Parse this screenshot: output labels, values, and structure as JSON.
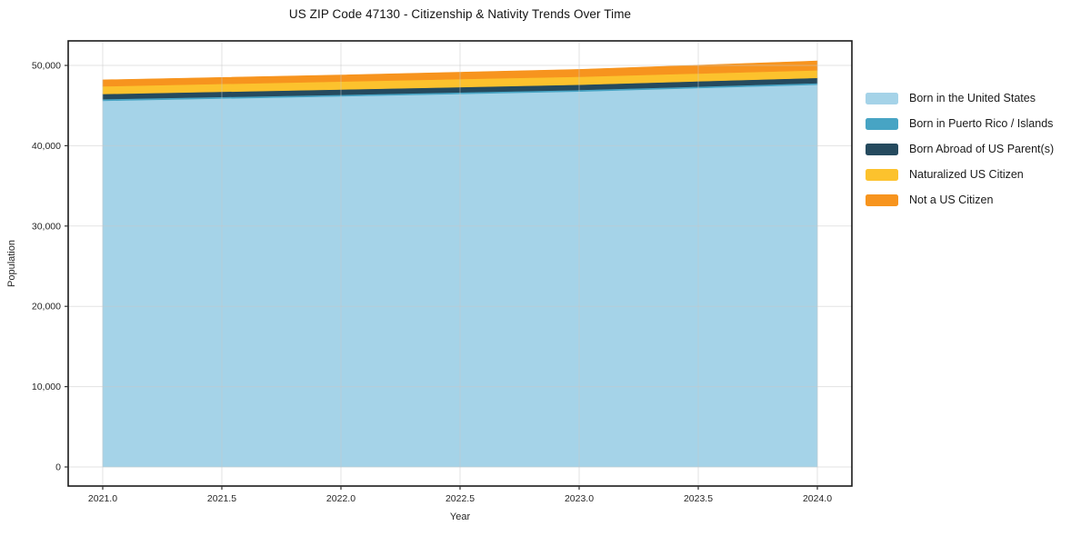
{
  "chart_data": {
    "type": "area",
    "stacked": true,
    "title": "US ZIP Code 47130 - Citizenship & Nativity Trends Over Time",
    "xlabel": "Year",
    "ylabel": "Population",
    "x": [
      2021,
      2022,
      2023,
      2024
    ],
    "series": [
      {
        "name": "Born in the United States",
        "color": "#A5D3E8",
        "values": [
          45600,
          46150,
          46750,
          47600
        ]
      },
      {
        "name": "Born in Puerto Rico / Islands",
        "color": "#47A4C4",
        "values": [
          200,
          200,
          200,
          200
        ]
      },
      {
        "name": "Born Abroad of US Parent(s)",
        "color": "#254A5E",
        "values": [
          650,
          650,
          650,
          650
        ]
      },
      {
        "name": "Naturalized US Citizen",
        "color": "#FCC22D",
        "values": [
          950,
          1000,
          1000,
          950
        ]
      },
      {
        "name": "Not a US Citizen",
        "color": "#F7941E",
        "values": [
          800,
          800,
          900,
          1150
        ]
      }
    ],
    "x_range": [
      2020.855,
      2024.145
    ],
    "y_range": [
      -2375,
      53055
    ],
    "xticks": [
      {
        "v": 2021.0,
        "label": "2021.0"
      },
      {
        "v": 2021.5,
        "label": "2021.5"
      },
      {
        "v": 2022.0,
        "label": "2022.0"
      },
      {
        "v": 2022.5,
        "label": "2022.5"
      },
      {
        "v": 2023.0,
        "label": "2023.0"
      },
      {
        "v": 2023.5,
        "label": "2023.5"
      },
      {
        "v": 2024.0,
        "label": "2024.0"
      }
    ],
    "yticks": [
      {
        "v": 0,
        "label": "0"
      },
      {
        "v": 10000,
        "label": "10,000"
      },
      {
        "v": 20000,
        "label": "20,000"
      },
      {
        "v": 30000,
        "label": "30,000"
      },
      {
        "v": 40000,
        "label": "40,000"
      },
      {
        "v": 50000,
        "label": "50,000"
      }
    ],
    "grid": true,
    "legend_position": "right"
  },
  "style": {
    "grid_color": "#c8c8c8",
    "spine_color": "#1a1a1a",
    "tick_color": "#333333",
    "tick_label_color": "#262626",
    "background": "#ffffff"
  }
}
